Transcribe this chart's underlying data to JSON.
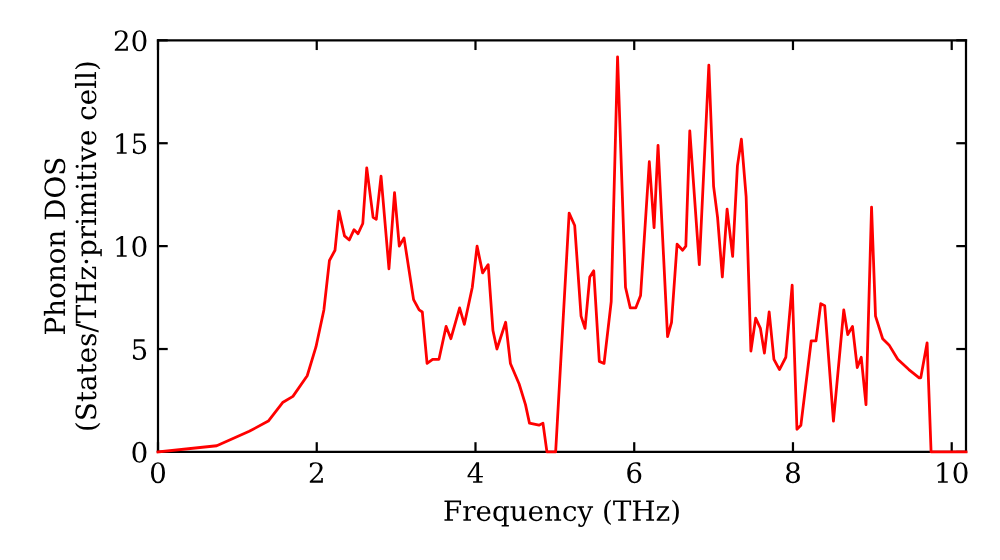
{
  "chart_data": {
    "type": "line",
    "xlabel": "Frequency (THz)",
    "ylabel": "Phonon DOS\n(States/THz·primitive cell)",
    "xlim": [
      0,
      10.18
    ],
    "xticks": [
      0,
      2,
      4,
      6,
      8,
      10
    ],
    "ylim": [
      0,
      20
    ],
    "yticks": [
      0,
      5,
      10,
      15,
      20
    ],
    "grid": false,
    "legend": false,
    "marker": "none",
    "line_style": "solid",
    "series": [
      {
        "color": "#ff0000",
        "x": [
          0,
          0.74,
          1.15,
          1.39,
          1.57,
          1.7,
          1.88,
          1.99,
          2.09,
          2.16,
          2.23,
          2.28,
          2.35,
          2.41,
          2.47,
          2.52,
          2.58,
          2.63,
          2.71,
          2.75,
          2.81,
          2.91,
          2.98,
          3.04,
          3.1,
          3.22,
          3.29,
          3.33,
          3.39,
          3.46,
          3.54,
          3.63,
          3.69,
          3.8,
          3.86,
          3.96,
          4.02,
          4.09,
          4.16,
          4.22,
          4.27,
          4.38,
          4.44,
          4.55,
          4.63,
          4.68,
          4.8,
          4.85,
          4.9,
          5.01,
          5.18,
          5.25,
          5.33,
          5.38,
          5.44,
          5.49,
          5.56,
          5.62,
          5.71,
          5.79,
          5.89,
          5.95,
          6.02,
          6.08,
          6.19,
          6.25,
          6.3,
          6.42,
          6.47,
          6.54,
          6.61,
          6.65,
          6.7,
          6.82,
          6.94,
          7.0,
          7.05,
          7.11,
          7.17,
          7.24,
          7.3,
          7.35,
          7.41,
          7.47,
          7.53,
          7.59,
          7.64,
          7.7,
          7.76,
          7.83,
          7.91,
          7.99,
          8.05,
          8.1,
          8.23,
          8.29,
          8.35,
          8.4,
          8.51,
          8.64,
          8.69,
          8.75,
          8.81,
          8.86,
          8.92,
          8.99,
          9.04,
          9.13,
          9.21,
          9.32,
          9.46,
          9.59,
          9.61,
          9.69,
          9.74,
          10.18
        ],
        "values": [
          0,
          0.3,
          1.0,
          1.5,
          2.4,
          2.7,
          3.7,
          5.1,
          6.9,
          9.3,
          9.8,
          11.7,
          10.5,
          10.3,
          10.8,
          10.6,
          11.1,
          13.8,
          11.4,
          11.3,
          13.4,
          8.9,
          12.6,
          10.0,
          10.4,
          7.4,
          6.9,
          6.8,
          4.3,
          4.5,
          4.5,
          6.1,
          5.5,
          7.0,
          6.2,
          8.0,
          10.0,
          8.7,
          9.1,
          5.9,
          5.0,
          6.3,
          4.3,
          3.3,
          2.3,
          1.4,
          1.3,
          1.4,
          0,
          0,
          11.6,
          11.0,
          6.6,
          6.0,
          8.5,
          8.8,
          4.4,
          4.3,
          7.3,
          19.2,
          8.0,
          7.0,
          7.0,
          7.6,
          14.1,
          10.9,
          14.9,
          5.6,
          6.3,
          10.1,
          9.8,
          10.0,
          15.6,
          9.1,
          18.8,
          12.9,
          11.4,
          8.5,
          11.8,
          9.5,
          13.9,
          15.2,
          12.4,
          4.9,
          6.5,
          6.0,
          4.8,
          6.8,
          4.5,
          4.0,
          4.6,
          8.1,
          1.1,
          1.3,
          5.4,
          5.4,
          7.2,
          7.1,
          1.5,
          6.9,
          5.7,
          6.1,
          4.1,
          4.6,
          2.3,
          11.9,
          6.6,
          5.5,
          5.2,
          4.5,
          4.0,
          3.6,
          3.6,
          5.3,
          0,
          0
        ]
      }
    ]
  }
}
